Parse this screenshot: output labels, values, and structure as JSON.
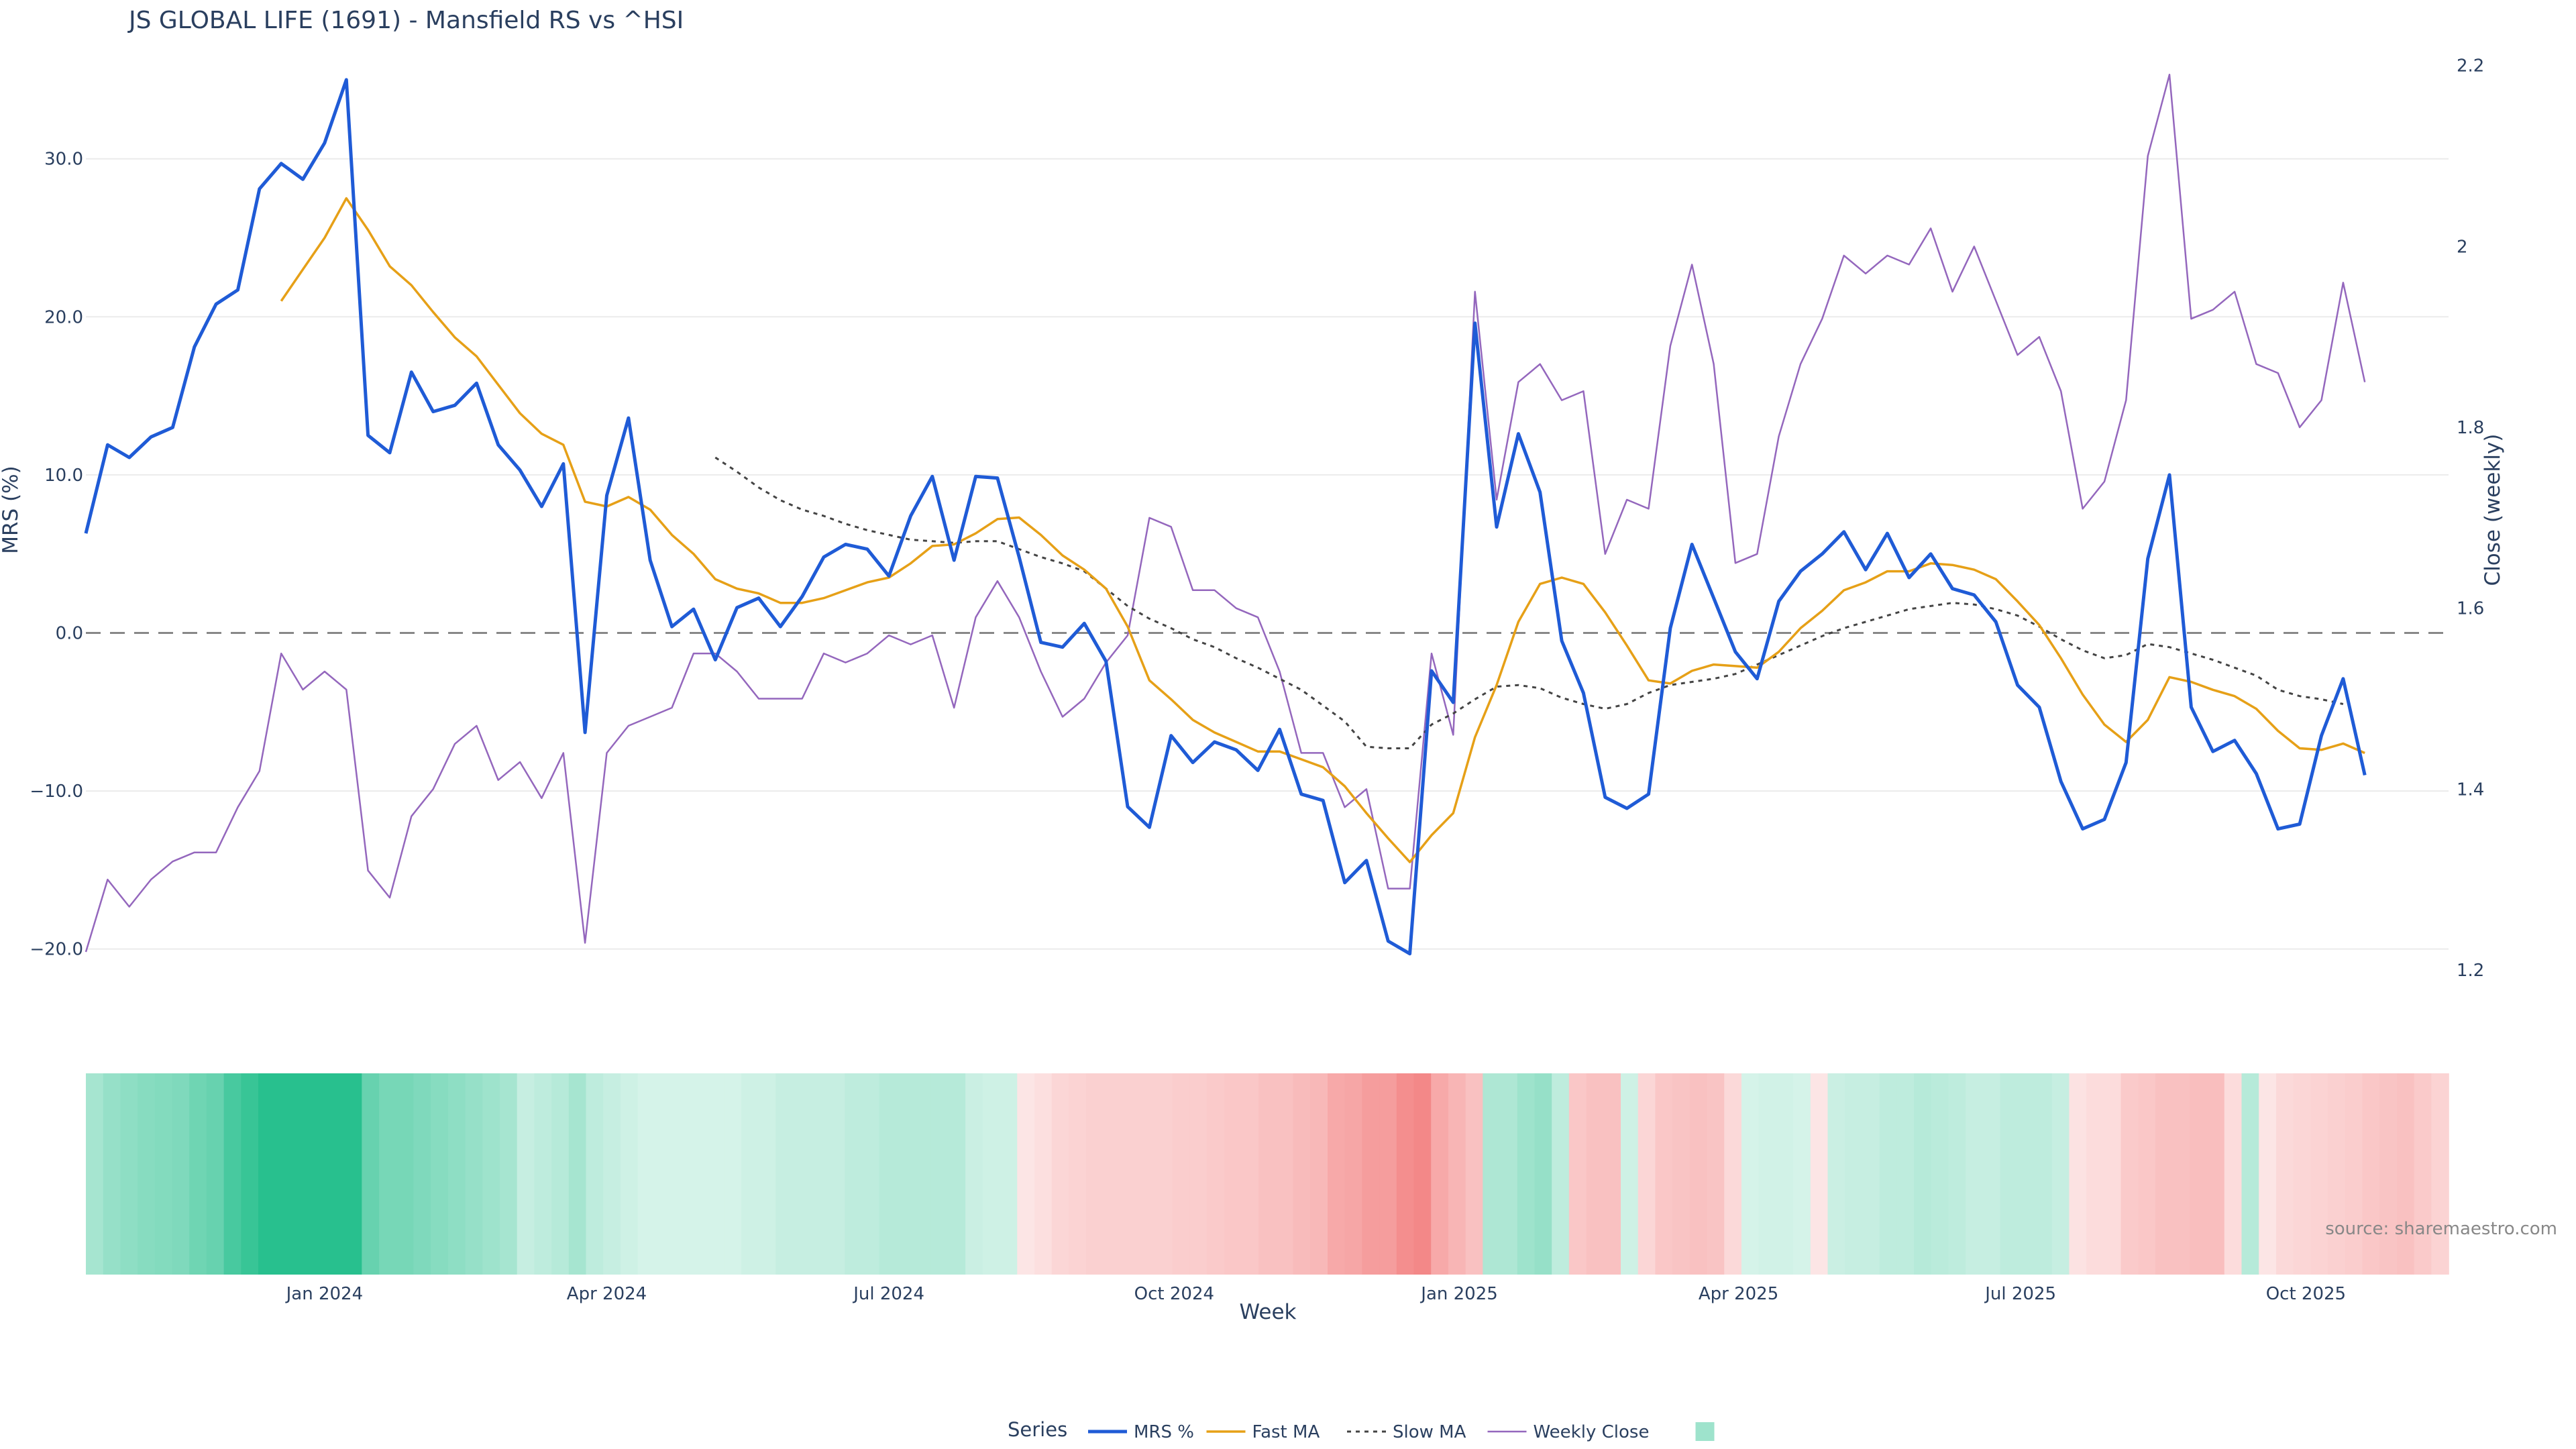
{
  "chart_data": {
    "type": "line",
    "title": "JS GLOBAL LIFE (1691) - Mansfield RS vs ^HSI",
    "ylabel": "MRS (%)",
    "y2label": "Close (weekly)",
    "xlabel": "Week",
    "ylim": [
      -21.5,
      37.5
    ],
    "y2lim": [
      1.197,
      2.228
    ],
    "yticks": [
      -20,
      -10,
      0,
      10,
      20,
      30
    ],
    "ytick_labels": [
      "−20.0",
      "−10.0",
      "0.0",
      "10.0",
      "20.0",
      "30.0"
    ],
    "y2ticks": [
      1.2,
      1.4,
      1.6,
      1.8,
      2.0,
      2.2
    ],
    "y2tick_labels": [
      "1.2",
      "1.4",
      "1.6",
      "1.8",
      "2",
      "2.2"
    ],
    "x_start": "2023-10-16",
    "x_step_days": 7,
    "x_end": "2025-11-16",
    "xticks": [
      "2024-01-01",
      "2024-04-01",
      "2024-07-01",
      "2024-10-01",
      "2025-01-01",
      "2025-04-01",
      "2025-07-01",
      "2025-10-01"
    ],
    "xtick_labels": [
      "Jan 2024",
      "Apr 2024",
      "Jul 2024",
      "Oct 2024",
      "Jan 2025",
      "Apr 2025",
      "Jul 2025",
      "Oct 2025"
    ],
    "zero_line": 0,
    "grid": true,
    "colors": {
      "mrs": "#1f5bd6",
      "fast": "#e6a017",
      "slow": "#444444",
      "close": "#9467bd",
      "heat_pos": "#28c08e",
      "heat_neg": "#ef5b5b",
      "grid": "#ebebeb",
      "zero": "#888888"
    },
    "series": [
      {
        "name": "MRS %",
        "axis": "y",
        "style": "solid",
        "values": [
          6.3,
          11.9,
          11.1,
          12.4,
          13.0,
          18.1,
          20.8,
          21.7,
          28.1,
          29.7,
          28.7,
          31.0,
          35.0,
          12.5,
          11.4,
          16.5,
          14.0,
          14.4,
          15.8,
          11.9,
          10.3,
          8.0,
          10.7,
          -6.3,
          8.7,
          13.6,
          4.6,
          0.4,
          1.5,
          -1.7,
          1.6,
          2.2,
          0.4,
          2.3,
          4.8,
          5.6,
          5.3,
          3.6,
          7.4,
          9.9,
          4.6,
          9.9,
          9.8,
          4.8,
          -0.6,
          -0.9,
          0.6,
          -1.8,
          -11.0,
          -12.3,
          -6.5,
          -8.2,
          -6.9,
          -7.4,
          -8.7,
          -6.1,
          -10.2,
          -10.6,
          -15.8,
          -14.4,
          -19.5,
          -20.3,
          -2.4,
          -4.4,
          19.6,
          6.7,
          12.6,
          8.9,
          -0.5,
          -3.8,
          -10.4,
          -11.1,
          -10.2,
          0.3,
          5.6,
          2.2,
          -1.2,
          -2.9,
          2.0,
          3.9,
          5.0,
          6.4,
          4.0,
          6.3,
          3.5,
          5.0,
          2.8,
          2.4,
          0.7,
          -3.3,
          -4.7,
          -9.4,
          -12.4,
          -11.8,
          -8.2,
          4.7,
          10.0,
          -4.7,
          -7.5,
          -6.8,
          -8.9,
          -12.4,
          -12.1,
          -6.5,
          -2.9,
          -9.0
        ]
      },
      {
        "name": "Fast MA",
        "axis": "y",
        "style": "solid",
        "start_index": 9,
        "values": [
          21.0,
          23.0,
          25.0,
          27.5,
          25.5,
          23.2,
          22.0,
          20.3,
          18.7,
          17.5,
          15.7,
          13.9,
          12.6,
          11.9,
          8.3,
          8.0,
          8.6,
          7.8,
          6.2,
          5.0,
          3.4,
          2.8,
          2.5,
          1.9,
          1.9,
          2.2,
          2.7,
          3.2,
          3.5,
          4.4,
          5.5,
          5.6,
          6.3,
          7.2,
          7.3,
          6.2,
          4.9,
          4.0,
          2.8,
          0.4,
          -3.0,
          -4.2,
          -5.5,
          -6.3,
          -6.9,
          -7.5,
          -7.5,
          -8.0,
          -8.5,
          -9.7,
          -11.4,
          -13.0,
          -14.5,
          -12.8,
          -11.4,
          -6.6,
          -3.3,
          0.7,
          3.1,
          3.5,
          3.1,
          1.3,
          -0.8,
          -3.0,
          -3.2,
          -2.4,
          -2.0,
          -2.1,
          -2.2,
          -1.2,
          0.3,
          1.4,
          2.7,
          3.2,
          3.9,
          3.9,
          4.4,
          4.3,
          4.0,
          3.4,
          2.0,
          0.5,
          -1.6,
          -3.9,
          -5.8,
          -6.9,
          -5.5,
          -2.8,
          -3.1,
          -3.6,
          -4.0,
          -4.8,
          -6.2,
          -7.3,
          -7.4,
          -7.0,
          -7.6
        ]
      },
      {
        "name": "Slow MA",
        "axis": "y",
        "style": "dot",
        "start_index": 29,
        "values": [
          11.1,
          10.2,
          9.2,
          8.4,
          7.8,
          7.4,
          6.9,
          6.5,
          6.2,
          5.9,
          5.8,
          5.7,
          5.8,
          5.8,
          5.3,
          4.8,
          4.4,
          3.9,
          2.8,
          1.7,
          0.9,
          0.3,
          -0.4,
          -0.9,
          -1.6,
          -2.2,
          -2.9,
          -3.6,
          -4.6,
          -5.6,
          -7.2,
          -7.3,
          -7.3,
          -5.8,
          -5.1,
          -4.2,
          -3.4,
          -3.3,
          -3.5,
          -4.1,
          -4.5,
          -4.8,
          -4.5,
          -3.8,
          -3.3,
          -3.1,
          -2.9,
          -2.6,
          -2.0,
          -1.4,
          -0.8,
          -0.2,
          0.3,
          0.7,
          1.1,
          1.5,
          1.7,
          1.9,
          1.8,
          1.5,
          1.1,
          0.4,
          -0.4,
          -1.1,
          -1.6,
          -1.4,
          -0.7,
          -0.9,
          -1.3,
          -1.7,
          -2.2,
          -2.7,
          -3.6,
          -4.0,
          -4.2,
          -4.5
        ]
      },
      {
        "name": "Weekly Close",
        "axis": "y2",
        "style": "solid",
        "values": [
          1.22,
          1.3,
          1.27,
          1.3,
          1.32,
          1.33,
          1.33,
          1.38,
          1.42,
          1.55,
          1.51,
          1.53,
          1.51,
          1.31,
          1.28,
          1.37,
          1.4,
          1.45,
          1.47,
          1.41,
          1.43,
          1.39,
          1.44,
          1.23,
          1.44,
          1.47,
          1.48,
          1.49,
          1.55,
          1.55,
          1.53,
          1.5,
          1.5,
          1.5,
          1.55,
          1.54,
          1.55,
          1.57,
          1.56,
          1.57,
          1.49,
          1.59,
          1.63,
          1.59,
          1.53,
          1.48,
          1.5,
          1.54,
          1.57,
          1.7,
          1.69,
          1.62,
          1.62,
          1.6,
          1.59,
          1.53,
          1.44,
          1.44,
          1.38,
          1.4,
          1.29,
          1.29,
          1.55,
          1.46,
          1.95,
          1.72,
          1.85,
          1.87,
          1.83,
          1.84,
          1.66,
          1.72,
          1.71,
          1.89,
          1.98,
          1.87,
          1.65,
          1.66,
          1.79,
          1.87,
          1.92,
          1.99,
          1.97,
          1.99,
          1.98,
          2.02,
          1.95,
          2.0,
          1.94,
          1.88,
          1.9,
          1.84,
          1.71,
          1.74,
          1.83,
          2.1,
          2.19,
          1.92,
          1.93,
          1.95,
          1.87,
          1.86,
          1.8,
          1.83,
          1.96,
          1.85
        ]
      }
    ],
    "heatmap_row": [
      8.0,
      10.0,
      11.0,
      12.0,
      12.5,
      13.0,
      15.0,
      16.0,
      20.0,
      22.0,
      24.0,
      24.0,
      24.0,
      24.0,
      24.0,
      24.0,
      16.0,
      14.0,
      14.0,
      13.0,
      12.0,
      11.0,
      10.0,
      9.0,
      8.0,
      4.0,
      5.0,
      6.0,
      8.0,
      5.0,
      4.0,
      3.0,
      2.0,
      2.0,
      2.0,
      2.0,
      2.0,
      2.0,
      3.0,
      3.0,
      4.0,
      4.0,
      4.0,
      4.0,
      5.0,
      5.0,
      6.0,
      6.0,
      6.0,
      6.0,
      6.0,
      3.5,
      3.0,
      3.0,
      -1.0,
      -2.0,
      -3.5,
      -4.0,
      -4.5,
      -4.5,
      -4.5,
      -4.5,
      -4.5,
      -5.0,
      -5.0,
      -5.5,
      -6.0,
      -6.0,
      -7.0,
      -7.0,
      -8.0,
      -8.5,
      -11.0,
      -11.5,
      -13.0,
      -13.0,
      -15.5,
      -16.5,
      -11.0,
      -9.0,
      -7.0,
      7.0,
      7.0,
      9.0,
      10.0,
      5.0,
      -6.0,
      -7.0,
      -7.0,
      3.0,
      -3.5,
      -6.0,
      -6.5,
      -7.0,
      -6.5,
      -3.0,
      2.0,
      2.5,
      2.5,
      2.0,
      -1.0,
      3.5,
      4.0,
      4.0,
      5.0,
      5.0,
      6.0,
      5.5,
      5.0,
      4.0,
      4.0,
      5.0,
      5.0,
      5.0,
      4.0,
      -1.5,
      -2.5,
      -2.5,
      -5.5,
      -6.0,
      -7.0,
      -7.0,
      -7.5,
      -7.5,
      -2.5,
      6.0,
      -1.0,
      -3.0,
      -3.5,
      -4.0,
      -4.5,
      -5.0,
      -6.0,
      -6.5,
      -7.0,
      -5.5,
      -4.0
    ]
  },
  "legend": {
    "title": "Series",
    "items": [
      "MRS %",
      "Fast MA",
      "Slow MA",
      "Weekly Close",
      ""
    ]
  },
  "source": "source: sharemaestro.com"
}
